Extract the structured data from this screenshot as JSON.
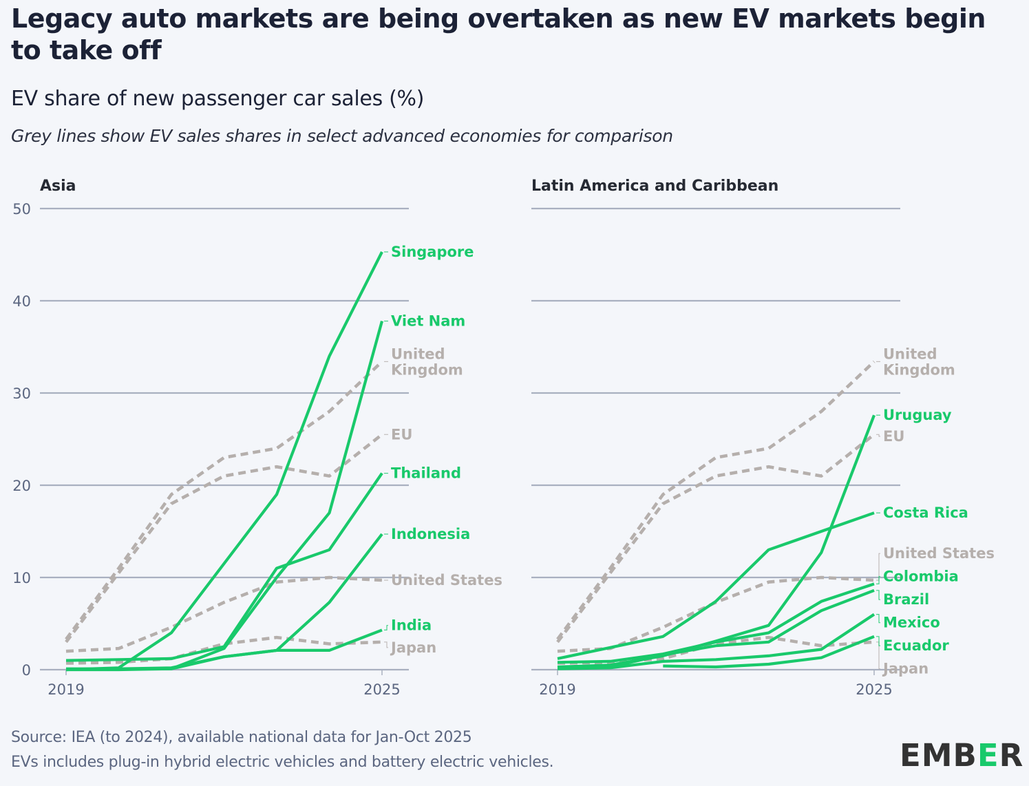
{
  "header": {
    "title": "Legacy auto markets are being overtaken as new EV markets begin to take off",
    "subtitle": "EV share of new passenger car sales (%)",
    "note": "Grey lines show EV sales shares in select advanced economies for comparison"
  },
  "footer": {
    "source": "Source: IEA (to 2024), available national data for Jan-Oct 2025",
    "definition": "EVs includes plug-in hybrid electric vehicles and battery electric vehicles.",
    "logo_prefix": "EMB",
    "logo_mid": "E",
    "logo_suffix": "R"
  },
  "colors": {
    "focus": "#19c96b",
    "comparison": "#b5afac",
    "grid": "#a9b0c0",
    "axis_text": "#5b6680"
  },
  "chart_data": [
    {
      "type": "line",
      "title": "Asia",
      "xlabel": "",
      "ylabel": "EV share of new passenger car sales (%)",
      "x": [
        2019,
        2020,
        2021,
        2022,
        2023,
        2024,
        2025
      ],
      "xticks": [
        "2019",
        "2025"
      ],
      "yticks": [
        "0",
        "10",
        "20",
        "30",
        "40",
        "50"
      ],
      "ylim": [
        0,
        50
      ],
      "grid": true,
      "series": [
        {
          "name": "United Kingdom",
          "group": "comparison",
          "label": "United\nKingdom",
          "values": [
            3.3,
            11,
            19,
            23,
            24,
            28,
            33.4
          ]
        },
        {
          "name": "EU",
          "group": "comparison",
          "label": "EU",
          "values": [
            3,
            10.5,
            18,
            21,
            22,
            21,
            25.5
          ]
        },
        {
          "name": "United States",
          "group": "comparison",
          "label": "United States",
          "values": [
            2.0,
            2.3,
            4.6,
            7.3,
            9.5,
            10,
            9.7
          ]
        },
        {
          "name": "Japan",
          "group": "comparison",
          "label": "Japan",
          "values": [
            0.7,
            0.8,
            1.2,
            2.8,
            3.5,
            2.8,
            3.0
          ]
        },
        {
          "name": "Singapore",
          "group": "focus",
          "label": "Singapore",
          "values": [
            0,
            0.2,
            4,
            11.5,
            19,
            34,
            45.3
          ]
        },
        {
          "name": "Viet Nam",
          "group": "focus",
          "label": "Viet Nam",
          "values": [
            0,
            0,
            0.1,
            2.3,
            10,
            17,
            37.8
          ]
        },
        {
          "name": "Thailand",
          "group": "focus",
          "label": "Thailand",
          "values": [
            1.0,
            1.1,
            1.2,
            2.5,
            11,
            13,
            21.3
          ]
        },
        {
          "name": "Indonesia",
          "group": "focus",
          "label": "Indonesia",
          "values": [
            0,
            0.1,
            0.1,
            1.4,
            2.1,
            7.3,
            14.7
          ]
        },
        {
          "name": "India",
          "group": "focus",
          "label": "India",
          "values": [
            0.1,
            0.1,
            0.2,
            1.4,
            2.1,
            2.1,
            4.3
          ]
        }
      ],
      "label_values": {
        "Singapore": 45.3,
        "Viet Nam": 37.8,
        "United Kingdom": 33.4,
        "EU": 25.5,
        "Thailand": 21.3,
        "Indonesia": 14.7,
        "United States": 9.7,
        "India": 4.8,
        "Japan": 2.4
      }
    },
    {
      "type": "line",
      "title": "Latin America and Caribbean",
      "xlabel": "",
      "ylabel": "EV share of new passenger car sales (%)",
      "x": [
        2019,
        2020,
        2021,
        2022,
        2023,
        2024,
        2025
      ],
      "xticks": [
        "2019",
        "2025"
      ],
      "yticks": [
        "0",
        "10",
        "20",
        "30",
        "40",
        "50"
      ],
      "ylim": [
        0,
        50
      ],
      "grid": true,
      "series": [
        {
          "name": "United Kingdom",
          "group": "comparison",
          "label": "United\nKingdom",
          "values": [
            3.3,
            11,
            19,
            23,
            24,
            28,
            33.4
          ]
        },
        {
          "name": "EU",
          "group": "comparison",
          "label": "EU",
          "values": [
            3,
            10.5,
            18,
            21,
            22,
            21,
            25.5
          ]
        },
        {
          "name": "United States",
          "group": "comparison",
          "label": "United States",
          "values": [
            2.0,
            2.3,
            4.6,
            7.3,
            9.5,
            10,
            9.7
          ]
        },
        {
          "name": "Japan",
          "group": "comparison",
          "label": "Japan",
          "values": [
            0.7,
            0.8,
            1.2,
            2.8,
            3.5,
            2.6,
            3.0
          ]
        },
        {
          "name": "Uruguay",
          "group": "focus",
          "label": "Uruguay",
          "values": [
            0.3,
            0.5,
            1.5,
            3.1,
            4.8,
            12.7,
            27.6
          ]
        },
        {
          "name": "Costa Rica",
          "group": "focus",
          "label": "Costa Rica",
          "values": [
            1.2,
            2.4,
            3.6,
            7.4,
            13.0,
            15.0,
            17.0
          ]
        },
        {
          "name": "Colombia",
          "group": "focus",
          "label": "Colombia",
          "values": [
            0.8,
            0.9,
            1.7,
            3.0,
            4.0,
            7.4,
            9.3
          ]
        },
        {
          "name": "Brazil",
          "group": "focus",
          "label": "Brazil",
          "values": [
            0.2,
            0.3,
            1.6,
            2.6,
            3.0,
            6.4,
            8.6
          ]
        },
        {
          "name": "Mexico",
          "group": "focus",
          "label": "Mexico",
          "values": [
            0.1,
            0.2,
            0.9,
            1.1,
            1.5,
            2.2,
            6.0
          ]
        },
        {
          "name": "Ecuador",
          "group": "focus",
          "label": "Ecuador",
          "values": [
            null,
            null,
            0.4,
            0.3,
            0.6,
            1.3,
            3.6
          ]
        }
      ],
      "label_values": {
        "United Kingdom": 33.4,
        "Uruguay": 27.6,
        "EU": 25.3,
        "Costa Rica": 17.0,
        "United States": 12.6,
        "Colombia": 10.1,
        "Brazil": 7.6,
        "Mexico": 5.1,
        "Ecuador": 2.6,
        "Japan": 0.1
      }
    }
  ]
}
